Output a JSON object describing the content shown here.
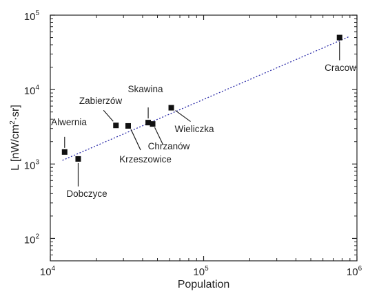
{
  "chart_data": {
    "type": "scatter",
    "title": "",
    "xlabel": "Population",
    "ylabel_main": "L [nW/cm",
    "ylabel_sup": "2",
    "ylabel_rest": "·sr]",
    "x_scale": "log",
    "y_scale": "log",
    "xlim": [
      10000,
      1000000
    ],
    "ylim": [
      50,
      100000
    ],
    "x_ticks": [
      {
        "value": 10000,
        "base": "10",
        "exp": "4"
      },
      {
        "value": 100000,
        "base": "10",
        "exp": "5"
      },
      {
        "value": 1000000,
        "base": "10",
        "exp": "6"
      }
    ],
    "y_ticks": [
      {
        "value": 100,
        "base": "10",
        "exp": "2"
      },
      {
        "value": 1000,
        "base": "10",
        "exp": "3"
      },
      {
        "value": 10000,
        "base": "10",
        "exp": "4"
      },
      {
        "value": 100000,
        "base": "10",
        "exp": "5"
      }
    ],
    "grid": false,
    "legend": "none",
    "marker_color": "#111111",
    "trend_color": "#2a2aa8",
    "trend_line": {
      "x": [
        12000,
        900000
      ],
      "y": [
        1120,
        52000
      ]
    },
    "points": [
      {
        "name": "Alwernia",
        "x": 12400,
        "y": 1450
      },
      {
        "name": "Dobczyce",
        "x": 15200,
        "y": 1170
      },
      {
        "name": "Zabierzów",
        "x": 26800,
        "y": 3300
      },
      {
        "name": "Krzeszowice",
        "x": 32200,
        "y": 3250
      },
      {
        "name": "Skawina",
        "x": 43500,
        "y": 3600
      },
      {
        "name": "Chrzanów",
        "x": 46500,
        "y": 3450
      },
      {
        "name": "Wieliczka",
        "x": 61500,
        "y": 5700
      },
      {
        "name": "Cracow",
        "x": 770000,
        "y": 50000
      }
    ]
  }
}
